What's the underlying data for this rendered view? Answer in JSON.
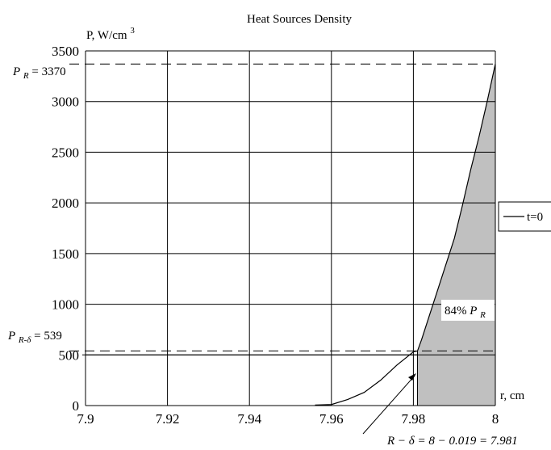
{
  "chart_data": {
    "type": "area",
    "title": "Heat Sources Density",
    "ylabel": "P, W/cm",
    "ylabel_superscript": "3",
    "xlabel": "r, cm",
    "xlim": [
      7.9,
      8.0
    ],
    "ylim": [
      0,
      3500
    ],
    "x_ticks": [
      7.9,
      7.92,
      7.94,
      7.96,
      7.98,
      8.0
    ],
    "x_tick_labels": [
      "7.9",
      "7.92",
      "7.94",
      "7.96",
      "7.98",
      "8"
    ],
    "y_ticks": [
      0,
      500,
      1000,
      1500,
      2000,
      2500,
      3000,
      3500
    ],
    "y_tick_labels": [
      "0",
      "500",
      "1000",
      "1500",
      "2000",
      "2500",
      "3000",
      "3500"
    ],
    "grid": true,
    "legend": {
      "position": "right",
      "entries": [
        "t=0"
      ]
    },
    "series": [
      {
        "name": "t=0",
        "x": [
          7.956,
          7.96,
          7.964,
          7.968,
          7.972,
          7.976,
          7.98,
          7.981,
          7.982,
          7.984,
          7.986,
          7.988,
          7.99,
          7.992,
          7.994,
          7.996,
          7.998,
          8.0
        ],
        "y": [
          5,
          10,
          60,
          130,
          250,
          400,
          530,
          539,
          650,
          900,
          1150,
          1400,
          1650,
          1980,
          2330,
          2650,
          3000,
          3370
        ]
      }
    ],
    "shaded_region": {
      "x_from": 7.981,
      "x_to": 8.0,
      "color": "#c0c0c0"
    },
    "reference_lines": [
      {
        "axis": "y",
        "value": 3370,
        "style": "dashed"
      },
      {
        "axis": "y",
        "value": 539,
        "style": "dashed"
      },
      {
        "axis": "y",
        "value": 500,
        "style": "solid"
      },
      {
        "axis": "x",
        "value": 7.981,
        "style": "solid"
      }
    ],
    "annotations": {
      "pr_main": "P",
      "pr_sub": "R",
      "pr_value": " = 3370",
      "prd_main": "P",
      "prd_sub": "R-δ",
      "prd_value": " = 539",
      "pct_prefix": "84%",
      "pct_main": "P",
      "pct_sub": "R",
      "bottom": "R − δ = 8 − 0.019 = 7.981"
    }
  }
}
